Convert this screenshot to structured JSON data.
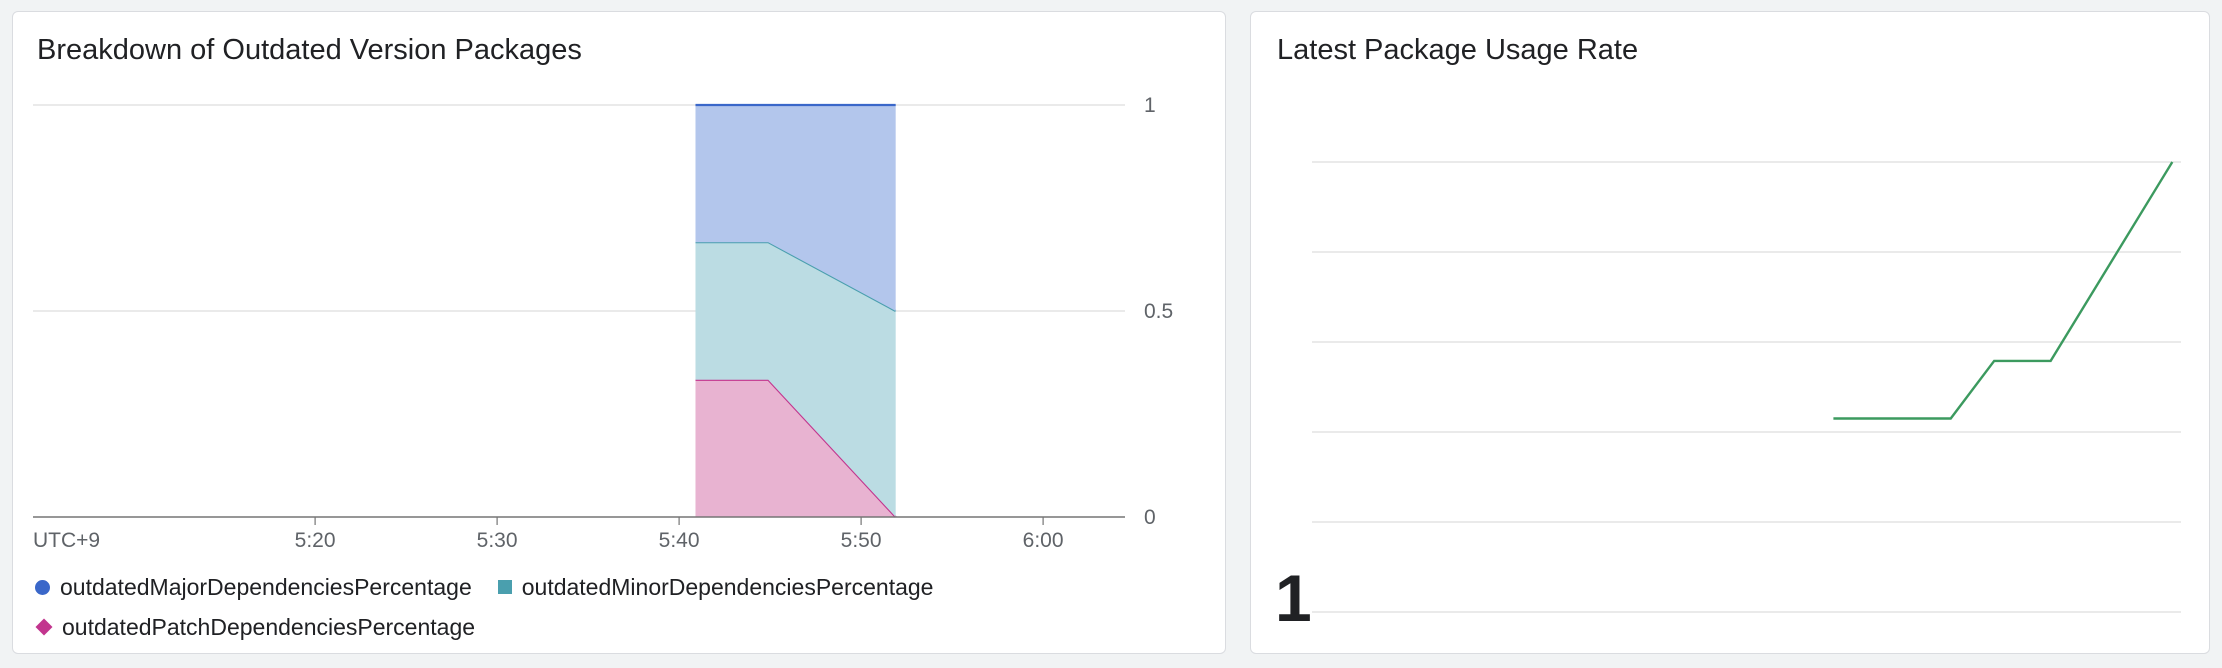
{
  "panels": [
    {
      "title": "Breakdown of Outdated Version Packages"
    },
    {
      "title": "Latest Package Usage Rate",
      "stat_value": "1"
    }
  ],
  "chart_data": [
    {
      "type": "area",
      "stacked": true,
      "title": "Breakdown of Outdated Version Packages",
      "x_label": "UTC+9",
      "x_ticks": [
        "5:20",
        "5:30",
        "5:40",
        "5:50",
        "6:00"
      ],
      "x_tick_minutes": [
        20,
        30,
        40,
        50,
        60
      ],
      "x_range_minutes": [
        4.5,
        64.5
      ],
      "y_ticks": [
        "0",
        "0.5",
        "1"
      ],
      "y_tick_values": [
        0,
        0.5,
        1
      ],
      "ylim": [
        0,
        1
      ],
      "y_axis_position": "right",
      "grid": true,
      "legend_position": "bottom",
      "x": [
        40.9,
        44.9,
        51.9
      ],
      "series": [
        {
          "name": "outdatedPatchDependenciesPercentage",
          "values": [
            0.333,
            0.333,
            0.0
          ],
          "color": "#c2358e",
          "fill": "#e8b3d1",
          "marker": "diamond"
        },
        {
          "name": "outdatedMinorDependenciesPercentage",
          "values": [
            0.334,
            0.334,
            0.5
          ],
          "color": "#4a9fae",
          "fill": "#bbdce3",
          "marker": "square"
        },
        {
          "name": "outdatedMajorDependenciesPercentage",
          "values": [
            0.333,
            0.333,
            0.5
          ],
          "color": "#3a67c9",
          "fill": "#b3c6ec",
          "marker": "circle"
        }
      ],
      "legend_order": [
        2,
        1,
        0
      ]
    },
    {
      "type": "line",
      "title": "Latest Package Usage Rate",
      "grid": true,
      "ylim": [
        0,
        5
      ],
      "xlim": [
        0,
        100
      ],
      "grid_values": [
        0,
        1,
        2,
        3,
        4,
        5
      ],
      "series": [
        {
          "x": [
            60,
            73.5,
            78.5,
            85,
            99
          ],
          "values": [
            2.15,
            2.15,
            2.79,
            2.79,
            5.0
          ],
          "color": "#3c9a5f"
        }
      ]
    }
  ]
}
